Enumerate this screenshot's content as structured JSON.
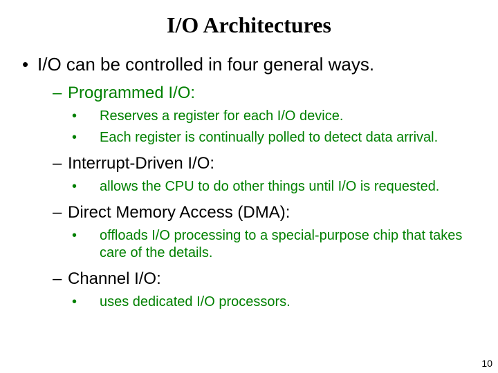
{
  "colors": {
    "background": "#ffffff",
    "text": "#000000",
    "accent": "#008000"
  },
  "typography": {
    "title_family": "Times New Roman",
    "body_family": "Arial",
    "title_fontsize_pt": 32,
    "lvl1_fontsize_pt": 26,
    "lvl2_fontsize_pt": 24,
    "lvl3_fontsize_pt": 20,
    "title_weight": "bold"
  },
  "title": "I/O Architectures",
  "lvl1": "I/O can be controlled in four general ways.",
  "sections": {
    "s1": {
      "heading": "Programmed I/O:",
      "b1": "Reserves a register for each I/O device.",
      "b2": "Each register is continually polled to detect data arrival."
    },
    "s2": {
      "heading": "Interrupt-Driven I/O:",
      "b1": "allows the CPU to do other things until I/O is requested."
    },
    "s3": {
      "heading": "Direct Memory Access (DMA):",
      "b1": "offloads I/O processing to a special-purpose chip that takes care of the details."
    },
    "s4": {
      "heading": "Channel I/O:",
      "b1": "uses dedicated I/O processors."
    }
  },
  "page_number": "10"
}
